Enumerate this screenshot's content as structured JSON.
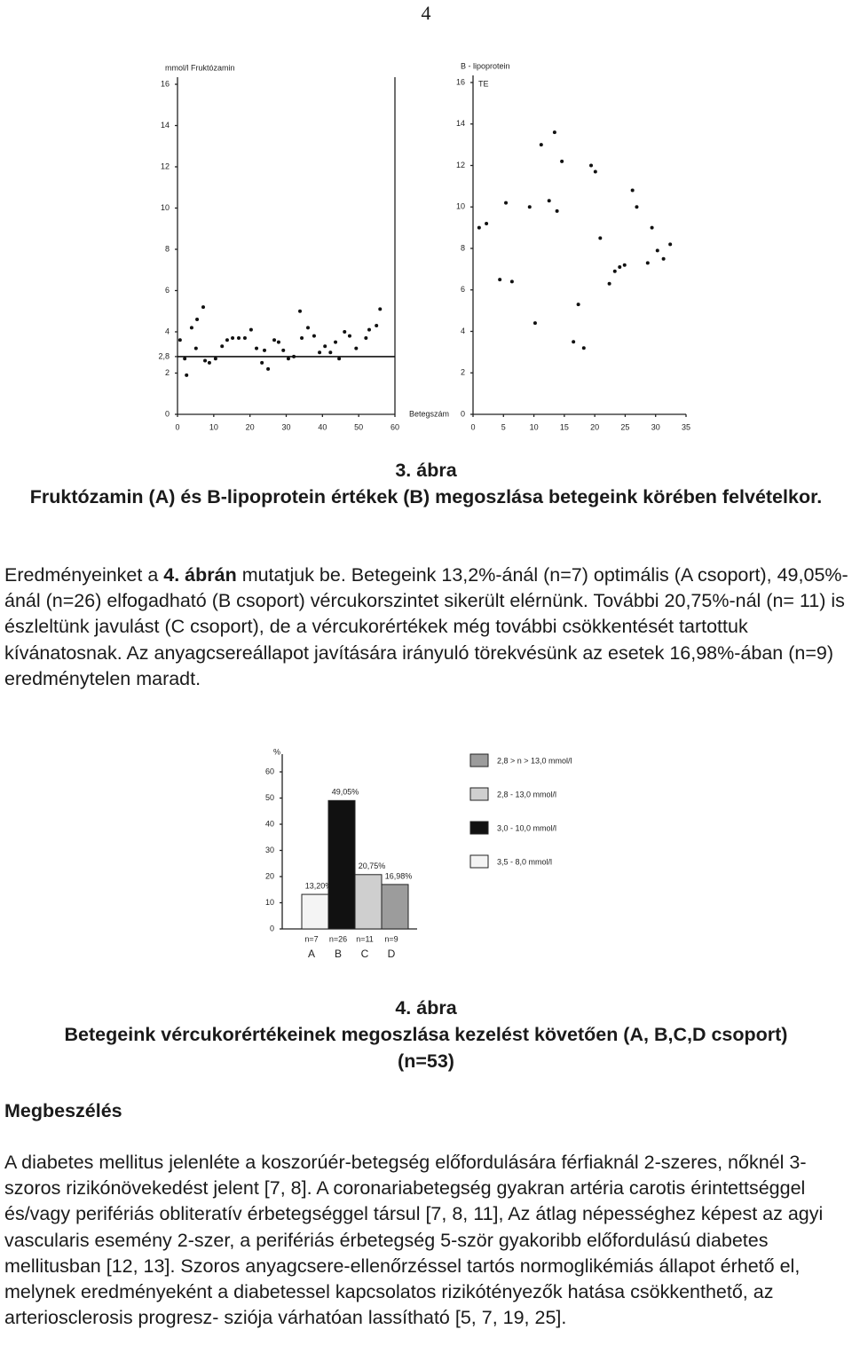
{
  "page_number": "4",
  "chart_data": [
    {
      "type": "scatter",
      "title": "mmol/l Fruktózamin",
      "x_label": "Betegszám",
      "color": "#111111",
      "x": [
        0.7,
        2,
        2.5,
        3.9,
        5.4,
        7.1,
        5.1,
        7.6,
        8.8,
        10.5,
        12.3,
        13.7,
        15.2,
        16.9,
        18.6,
        20.3,
        21.8,
        23.3,
        24,
        25,
        26.7,
        27.9,
        29.2,
        30.6,
        32.1,
        33.8,
        34.3,
        36,
        37.7,
        39.2,
        40.7,
        42.2,
        43.6,
        44.6,
        46.1,
        47.5,
        49.3,
        52,
        52.9,
        54.9,
        55.9
      ],
      "values": [
        3.6,
        2.7,
        1.9,
        4.2,
        4.6,
        5.2,
        3.2,
        2.6,
        2.5,
        2.7,
        3.3,
        3.6,
        3.7,
        3.7,
        3.7,
        4.1,
        3.2,
        2.5,
        3.1,
        2.2,
        3.6,
        3.5,
        3.1,
        2.7,
        2.8,
        5,
        3.7,
        4.2,
        3.8,
        3,
        3.3,
        3,
        3.5,
        2.7,
        4,
        3.8,
        3.2,
        3.7,
        4.1,
        4.3,
        5.1
      ],
      "reference_line": 2.8,
      "xlim": [
        0,
        60
      ],
      "xticks": [
        0,
        10,
        20,
        30,
        40,
        50,
        60
      ],
      "ylim": [
        0,
        16
      ],
      "yticks": [
        0,
        2,
        {
          "value": 2.8,
          "label": "2,8"
        },
        4,
        6,
        8,
        10,
        12,
        14,
        16
      ]
    },
    {
      "type": "scatter",
      "title": "B - lipoprotein",
      "y_label": "TE",
      "color": "#111111",
      "x": [
        1,
        2.2,
        4.4,
        5.4,
        6.4,
        9.3,
        10.2,
        11.2,
        12.5,
        13.4,
        13.8,
        14.6,
        16.5,
        17.3,
        18.2,
        19.4,
        20.1,
        20.9,
        22.4,
        23.3,
        24.1,
        24.9,
        26.2,
        26.9,
        28.7,
        29.4,
        30.3,
        31.3,
        32.4
      ],
      "values": [
        9,
        9.2,
        6.5,
        10.2,
        6.4,
        10,
        4.4,
        13,
        10.3,
        13.6,
        9.8,
        12.2,
        3.5,
        5.3,
        3.2,
        12,
        11.7,
        8.5,
        6.3,
        6.9,
        7.1,
        7.2,
        10.8,
        10,
        7.3,
        9,
        7.9,
        7.5,
        8.2
      ],
      "xlim": [
        0,
        35
      ],
      "xticks": [
        0,
        5,
        10,
        15,
        20,
        25,
        30,
        35
      ],
      "ylim": [
        0,
        16
      ],
      "yticks": [
        0,
        2,
        4,
        6,
        8,
        10,
        12,
        14,
        16
      ]
    },
    {
      "type": "bar",
      "y_label": "%",
      "categories": [
        "A",
        "B",
        "C",
        "D"
      ],
      "group_sizes": [
        "n=7",
        "n=26",
        "n=11",
        "n=9"
      ],
      "values": [
        13.2,
        49.05,
        20.75,
        16.98
      ],
      "value_labels": [
        "13,20%",
        "49,05%",
        "20,75%",
        "16,98%"
      ],
      "colors": [
        "#f4f4f4",
        "#111111",
        "#cfcfcf",
        "#9c9c9c"
      ],
      "legend_labels": [
        "3,5 - 8,0 mmol/l",
        "3,0 - 10,0 mmol/l",
        "2,8 - 13,0 mmol/l",
        "2,8 > n > 13,0 mmol/l"
      ],
      "ylim": [
        0,
        60
      ],
      "yticks": [
        0,
        10,
        20,
        30,
        40,
        50,
        60
      ]
    }
  ],
  "figure_3": {
    "label": "3. ábra",
    "caption": "Fruktózamin (A) és B-lipoprotein értékek (B) megoszlása betegeink körében felvételkor."
  },
  "paragraph_1": [
    "Eredményeinket a ",
    "4. ábrán",
    " mutatjuk be. Betegeink 13,2%-ánál (n=7) optimális (A csoport), 49,05%-ánál (n=26) elfogadható (B csoport) vércukorszintet sikerült elérnünk. További 20,75%-nál (n= 11) is észleltünk javulást (C csoport), de a vércukorértékek még további csökkentését tartottuk kívánatosnak. Az anyagcsereállapot javítására irányuló törekvésünk az esetek 16,98%-ában (n=9) eredménytelen maradt."
  ],
  "figure_4": {
    "label": "4. ábra",
    "caption": "Betegeink vércukorértékeinek megoszlása kezelést követően (A, B,C,D csoport) (n=53)"
  },
  "section_heading": "Megbeszélés",
  "paragraph_2": "A diabetes mellitus jelenléte a koszorúér-betegség előfordulására férfiaknál 2-szeres, nőknél 3-szoros rizikónövekedést jelent [7, 8]. A coronariabetegség gyakran artéria carotis érintettséggel és/vagy perifériás obliteratív érbetegséggel társul [7, 8, 11], Az átlag népességhez képest az agyi vascularis esemény 2-szer, a perifériás érbetegség 5-ször gyakoribb előfordulású diabetes mellitusban [12, 13]. Szoros anyagcsere-ellenőrzéssel tartós normoglikémiás állapot érhető el, melynek eredményeként a diabetessel kapcsolatos rizikótényezők hatása csökkenthető, az arteriosclerosis progresz- sziója várhatóan lassítható [5, 7, 19, 25]."
}
